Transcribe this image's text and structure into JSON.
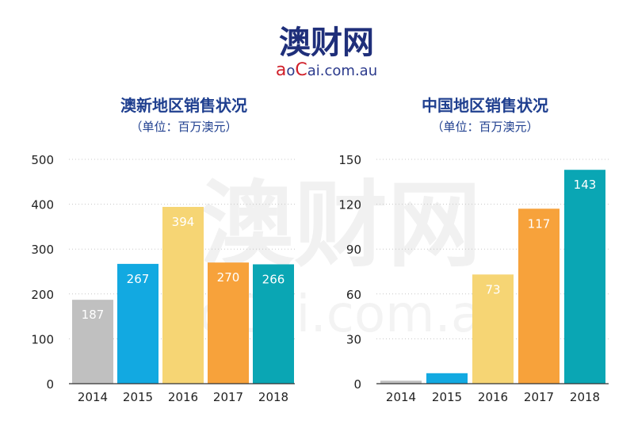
{
  "brand": {
    "name_cn": "澳财网",
    "name_en_a": "a",
    "name_en_o": "o",
    "name_en_c": "C",
    "name_en_rest": "ai.com.au",
    "watermark_cn": "澳财网",
    "watermark_en": "aoCai.com.au",
    "colors": {
      "navy": "#1f2f7a",
      "red": "#d0202a"
    }
  },
  "chart_data": [
    {
      "type": "bar",
      "title": "澳新地区销售状况",
      "subtitle": "（单位：百万澳元）",
      "categories": [
        "2014",
        "2015",
        "2016",
        "2017",
        "2018"
      ],
      "values": [
        187,
        267,
        394,
        270,
        266
      ],
      "colors": [
        "#c0c0c0",
        "#12a9e1",
        "#f6d574",
        "#f7a23b",
        "#0aa6b4"
      ],
      "ylim": [
        0,
        500
      ],
      "yticks": [
        0,
        100,
        200,
        300,
        400,
        500
      ],
      "grid": true,
      "xlabel": "",
      "ylabel": ""
    },
    {
      "type": "bar",
      "title": "中国地区销售状况",
      "subtitle": "（单位：百万澳元）",
      "categories": [
        "2014",
        "2015",
        "2016",
        "2017",
        "2018"
      ],
      "values": [
        2,
        7,
        73,
        117,
        143
      ],
      "colors": [
        "#c0c0c0",
        "#12a9e1",
        "#f6d574",
        "#f7a23b",
        "#0aa6b4"
      ],
      "ylim": [
        0,
        150
      ],
      "yticks": [
        0,
        30,
        60,
        90,
        120,
        150
      ],
      "grid": true,
      "xlabel": "",
      "ylabel": ""
    }
  ]
}
